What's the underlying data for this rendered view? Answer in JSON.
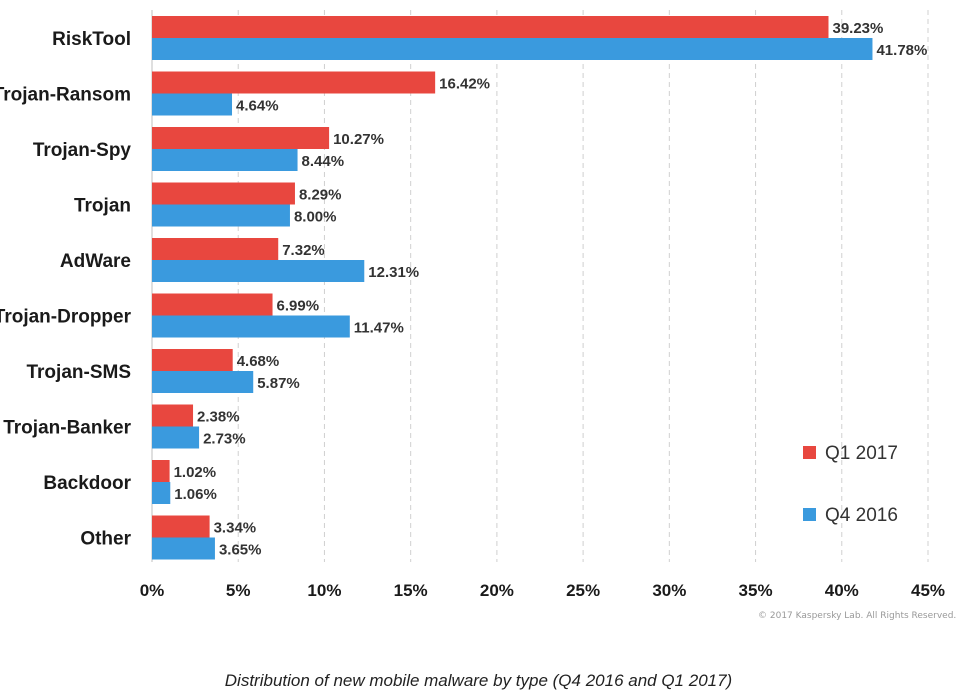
{
  "chart_data": {
    "type": "bar",
    "orientation": "horizontal",
    "categories": [
      "RiskTool",
      "Trojan-Ransom",
      "Trojan-Spy",
      "Trojan",
      "AdWare",
      "Trojan-Dropper",
      "Trojan-SMS",
      "Trojan-Banker",
      "Backdoor",
      "Other"
    ],
    "series": [
      {
        "name": "Q1 2017",
        "color": "#e8473f",
        "values": [
          39.23,
          16.42,
          10.27,
          8.29,
          7.32,
          6.99,
          4.68,
          2.38,
          1.02,
          3.34
        ],
        "labels": [
          "39.23%",
          "16.42%",
          "10.27%",
          "8.29%",
          "7.32%",
          "6.99%",
          "4.68%",
          "2.38%",
          "1.02%",
          "3.34%"
        ]
      },
      {
        "name": "Q4 2016",
        "color": "#3a9ade",
        "values": [
          41.78,
          4.64,
          8.44,
          8.0,
          12.31,
          11.47,
          5.87,
          2.73,
          1.06,
          3.65
        ],
        "labels": [
          "41.78%",
          "4.64%",
          "8.44%",
          "8.00%",
          "12.31%",
          "11.47%",
          "5.87%",
          "2.73%",
          "1.06%",
          "3.65%"
        ]
      }
    ],
    "xlim": [
      0,
      45
    ],
    "xticks": [
      0,
      5,
      10,
      15,
      20,
      25,
      30,
      35,
      40,
      45
    ],
    "xtick_labels": [
      "0%",
      "5%",
      "10%",
      "15%",
      "20%",
      "25%",
      "30%",
      "35%",
      "40%",
      "45%"
    ],
    "grid": "vertical dashed",
    "legend": {
      "position": "bottom-right",
      "items": [
        "Q1 2017",
        "Q4 2016"
      ]
    },
    "title": "Distribution of new mobile malware by type (Q4 2016 and Q1 2017)"
  },
  "copyright": "© 2017 Kaspersky Lab. All Rights Reserved."
}
